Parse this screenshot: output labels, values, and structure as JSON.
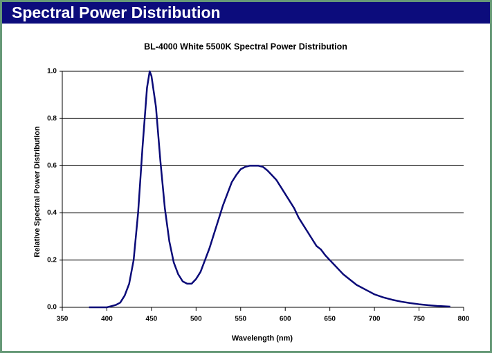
{
  "header": {
    "title": "Spectral Power Distribution"
  },
  "chart_data": {
    "type": "line",
    "title": "BL-4000 White 5500K Spectral Power Distribution",
    "xlabel": "Wavelength (nm)",
    "ylabel": "Relative Spectral Power Distribution",
    "xlim": [
      350,
      800
    ],
    "xticks": [
      350,
      400,
      450,
      500,
      550,
      600,
      650,
      700,
      750,
      800
    ],
    "ylim": [
      0,
      1
    ],
    "yticks": [
      {
        "value": 0,
        "label": "0.0"
      },
      0.2,
      0.4,
      0.6,
      0.8,
      {
        "value": 1,
        "label": "1.0"
      }
    ],
    "grid": true,
    "series": [
      {
        "name": "BL-4000 White 5500K",
        "color": "#0a0a78",
        "x": [
          380,
          385,
          390,
          395,
          400,
          405,
          410,
          415,
          420,
          425,
          430,
          435,
          440,
          445,
          448,
          450,
          455,
          460,
          465,
          470,
          475,
          480,
          485,
          490,
          495,
          500,
          505,
          510,
          515,
          520,
          525,
          530,
          535,
          540,
          545,
          550,
          555,
          560,
          565,
          570,
          575,
          580,
          585,
          590,
          595,
          600,
          605,
          610,
          615,
          620,
          625,
          630,
          635,
          640,
          645,
          650,
          655,
          660,
          665,
          670,
          675,
          680,
          685,
          690,
          695,
          700,
          710,
          720,
          730,
          740,
          750,
          760,
          770,
          785
        ],
        "values": [
          0.0,
          0.0,
          0.0,
          0.0,
          0.0,
          0.005,
          0.01,
          0.02,
          0.05,
          0.1,
          0.2,
          0.4,
          0.68,
          0.93,
          1.0,
          0.98,
          0.85,
          0.62,
          0.42,
          0.28,
          0.19,
          0.14,
          0.11,
          0.1,
          0.1,
          0.12,
          0.15,
          0.2,
          0.25,
          0.31,
          0.37,
          0.43,
          0.48,
          0.53,
          0.56,
          0.585,
          0.595,
          0.6,
          0.6,
          0.6,
          0.595,
          0.58,
          0.56,
          0.54,
          0.51,
          0.48,
          0.45,
          0.42,
          0.38,
          0.35,
          0.32,
          0.29,
          0.26,
          0.245,
          0.22,
          0.2,
          0.18,
          0.16,
          0.14,
          0.125,
          0.11,
          0.095,
          0.085,
          0.075,
          0.065,
          0.055,
          0.042,
          0.032,
          0.024,
          0.018,
          0.013,
          0.009,
          0.006,
          0.003
        ]
      }
    ]
  }
}
